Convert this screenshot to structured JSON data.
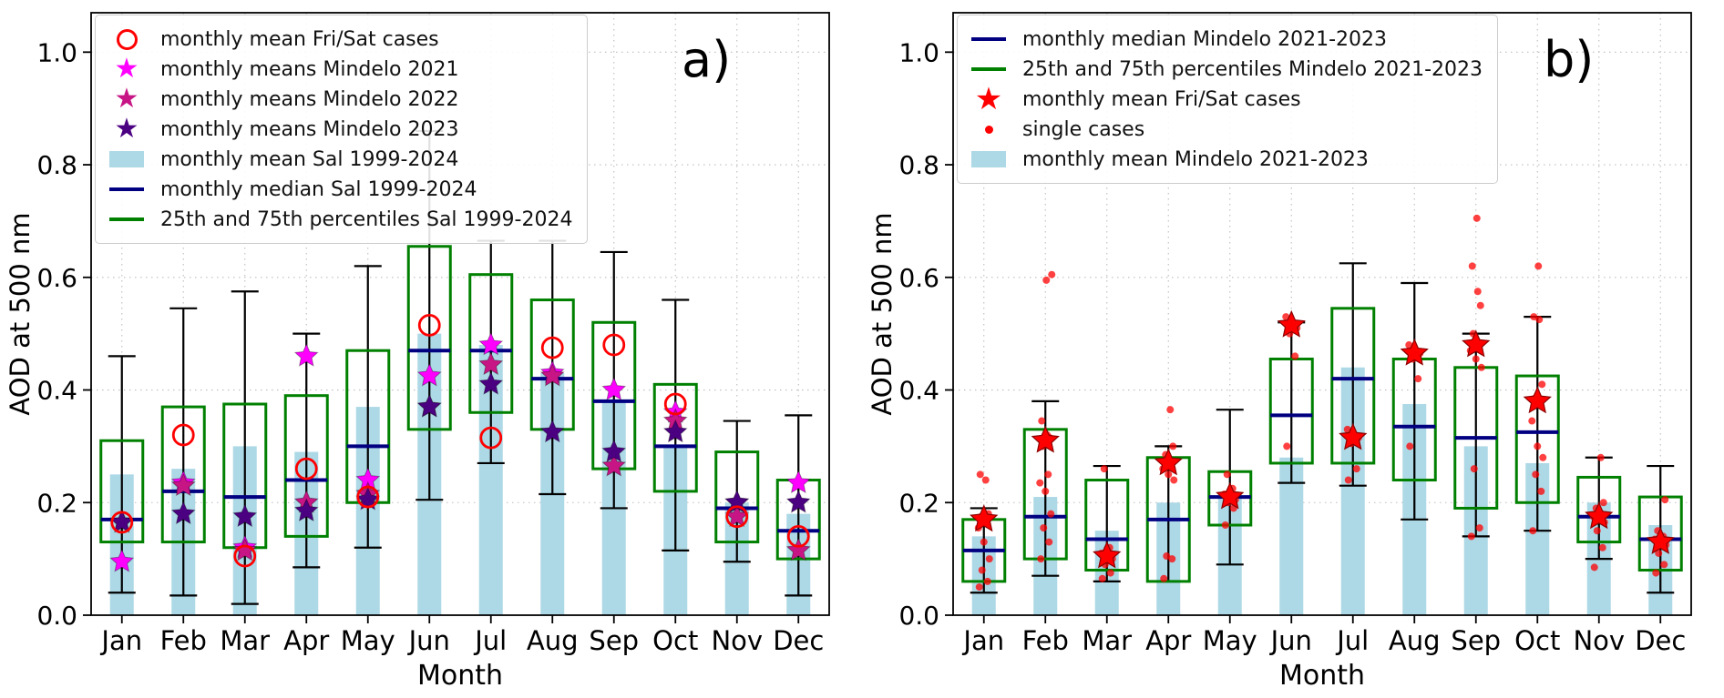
{
  "figure": {
    "panels": [
      {
        "label": "a)",
        "legend": [
          {
            "marker": "open-circle",
            "color": "#FF0000",
            "label": "monthly mean Fri/Sat cases"
          },
          {
            "marker": "star",
            "color": "#FF00FF",
            "label": "monthly means Mindelo 2021"
          },
          {
            "marker": "star",
            "color": "#C71585",
            "label": "monthly means Mindelo 2022"
          },
          {
            "marker": "star",
            "color": "#4B0082",
            "label": "monthly means Mindelo 2023"
          },
          {
            "marker": "bar",
            "color": "#ADD8E6",
            "label": "monthly mean Sal 1999-2024"
          },
          {
            "marker": "line",
            "color": "#000080",
            "label": "monthly median Sal 1999-2024"
          },
          {
            "marker": "line",
            "color": "#008000",
            "label": "25th and 75th percentiles Sal 1999-2024"
          }
        ]
      },
      {
        "label": "b)",
        "legend": [
          {
            "marker": "line",
            "color": "#000080",
            "label": "monthly median Mindelo 2021-2023"
          },
          {
            "marker": "line",
            "color": "#008000",
            "label": "25th and 75th percentiles Mindelo 2021-2023"
          },
          {
            "marker": "filled-star",
            "color": "#FF0000",
            "label": "monthly mean Fri/Sat cases"
          },
          {
            "marker": "dot",
            "color": "#FF0000",
            "label": "single cases"
          },
          {
            "marker": "bar",
            "color": "#ADD8E6",
            "label": "monthly mean Mindelo 2021-2023"
          }
        ]
      }
    ]
  },
  "chart_data": [
    {
      "type": "bar",
      "panel_label": "a)",
      "xlabel": "Month",
      "ylabel": "AOD at 500 nm",
      "ylim": [
        0,
        1.07
      ],
      "yticks": [
        0,
        0.2,
        0.4,
        0.6,
        0.8,
        1.0
      ],
      "grid": true,
      "legend_position": "top-left",
      "categories": [
        "Jan",
        "Feb",
        "Mar",
        "Apr",
        "May",
        "Jun",
        "Jul",
        "Aug",
        "Sep",
        "Oct",
        "Nov",
        "Dec"
      ],
      "bar_means": [
        0.25,
        0.26,
        0.3,
        0.29,
        0.37,
        0.5,
        0.48,
        0.43,
        0.38,
        0.3,
        0.2,
        0.18
      ],
      "medians": [
        0.17,
        0.22,
        0.21,
        0.24,
        0.3,
        0.47,
        0.47,
        0.42,
        0.38,
        0.3,
        0.19,
        0.15
      ],
      "p25": [
        0.13,
        0.13,
        0.12,
        0.14,
        0.2,
        0.33,
        0.36,
        0.33,
        0.26,
        0.22,
        0.13,
        0.1
      ],
      "p75": [
        0.31,
        0.37,
        0.375,
        0.39,
        0.47,
        0.655,
        0.605,
        0.56,
        0.52,
        0.41,
        0.29,
        0.24
      ],
      "whisker_low": [
        0.04,
        0.035,
        0.02,
        0.085,
        0.12,
        0.205,
        0.27,
        0.215,
        0.19,
        0.115,
        0.095,
        0.035
      ],
      "whisker_high": [
        0.46,
        0.545,
        0.575,
        0.5,
        0.62,
        0.86,
        0.665,
        0.665,
        0.645,
        0.56,
        0.345,
        0.355
      ],
      "series": [
        {
          "name": "monthly means Mindelo 2021",
          "marker": "star",
          "color": "#FF00FF",
          "values": [
            0.095,
            0.235,
            0.12,
            0.46,
            0.24,
            0.425,
            0.48,
            0.43,
            0.4,
            0.36,
            0.2,
            0.235
          ]
        },
        {
          "name": "monthly means Mindelo 2022",
          "marker": "star",
          "color": "#C71585",
          "values": [
            0.165,
            0.23,
            0.115,
            0.2,
            0.215,
            0.37,
            0.445,
            0.425,
            0.265,
            0.345,
            0.175,
            0.115
          ]
        },
        {
          "name": "monthly means Mindelo 2023",
          "marker": "star",
          "color": "#4B0082",
          "values": [
            0.165,
            0.18,
            0.175,
            0.185,
            0.205,
            0.37,
            0.41,
            0.325,
            0.29,
            0.325,
            0.2,
            0.2
          ]
        },
        {
          "name": "monthly mean Fri/Sat cases",
          "marker": "open-circle",
          "color": "#FF0000",
          "values": [
            0.165,
            0.32,
            0.105,
            0.26,
            0.21,
            0.515,
            0.315,
            0.475,
            0.48,
            0.375,
            0.175,
            0.14
          ]
        }
      ],
      "colors": {
        "bar": "#ADD8E6",
        "box": "#008000",
        "median": "#000080",
        "whisker": "#000000"
      }
    },
    {
      "type": "bar",
      "panel_label": "b)",
      "xlabel": "Month",
      "ylabel": "AOD at 500 nm",
      "ylim": [
        0,
        1.07
      ],
      "yticks": [
        0,
        0.2,
        0.4,
        0.6,
        0.8,
        1.0
      ],
      "grid": true,
      "legend_position": "top-left",
      "categories": [
        "Jan",
        "Feb",
        "Mar",
        "Apr",
        "May",
        "Jun",
        "Jul",
        "Aug",
        "Sep",
        "Oct",
        "Nov",
        "Dec"
      ],
      "bar_means": [
        0.14,
        0.21,
        0.15,
        0.2,
        0.21,
        0.28,
        0.44,
        0.375,
        0.3,
        0.27,
        0.2,
        0.16
      ],
      "medians": [
        0.115,
        0.175,
        0.135,
        0.17,
        0.21,
        0.355,
        0.42,
        0.335,
        0.315,
        0.325,
        0.175,
        0.135
      ],
      "p25": [
        0.06,
        0.1,
        0.08,
        0.06,
        0.16,
        0.27,
        0.27,
        0.24,
        0.19,
        0.2,
        0.13,
        0.08
      ],
      "p75": [
        0.17,
        0.33,
        0.24,
        0.28,
        0.255,
        0.455,
        0.545,
        0.455,
        0.44,
        0.425,
        0.245,
        0.21
      ],
      "whisker_low": [
        0.04,
        0.07,
        0.06,
        0.06,
        0.09,
        0.235,
        0.23,
        0.17,
        0.14,
        0.15,
        0.1,
        0.04
      ],
      "whisker_high": [
        0.19,
        0.38,
        0.265,
        0.3,
        0.365,
        0.52,
        0.625,
        0.59,
        0.5,
        0.53,
        0.28,
        0.265
      ],
      "series": [
        {
          "name": "monthly mean Fri/Sat cases",
          "marker": "filled-star",
          "color": "#FF0000",
          "values": [
            0.17,
            0.31,
            0.105,
            0.27,
            0.21,
            0.515,
            0.315,
            0.465,
            0.48,
            0.38,
            0.175,
            0.13
          ]
        }
      ],
      "single_cases": [
        [
          0.05,
          0.06,
          0.08,
          0.1,
          0.13,
          0.155,
          0.165,
          0.175,
          0.18,
          0.24,
          0.25
        ],
        [
          0.1,
          0.13,
          0.155,
          0.18,
          0.22,
          0.235,
          0.25,
          0.3,
          0.315,
          0.32,
          0.345,
          0.595,
          0.605
        ],
        [
          0.065,
          0.075,
          0.09,
          0.1,
          0.105,
          0.11,
          0.12,
          0.26
        ],
        [
          0.065,
          0.1,
          0.105,
          0.24,
          0.25,
          0.26,
          0.27,
          0.285,
          0.3,
          0.365
        ],
        [
          0.16,
          0.19,
          0.2,
          0.205,
          0.21,
          0.215,
          0.225,
          0.25
        ],
        [
          0.3,
          0.46,
          0.5,
          0.51,
          0.515,
          0.53
        ],
        [
          0.24,
          0.26,
          0.305,
          0.315,
          0.32,
          0.33
        ],
        [
          0.3,
          0.42,
          0.455,
          0.465,
          0.47,
          0.48
        ],
        [
          0.14,
          0.155,
          0.26,
          0.44,
          0.455,
          0.47,
          0.48,
          0.5,
          0.55,
          0.575,
          0.62,
          0.705
        ],
        [
          0.15,
          0.22,
          0.25,
          0.28,
          0.3,
          0.345,
          0.375,
          0.385,
          0.41,
          0.525,
          0.53,
          0.62
        ],
        [
          0.085,
          0.12,
          0.15,
          0.165,
          0.17,
          0.175,
          0.18,
          0.19,
          0.2,
          0.28
        ],
        [
          0.075,
          0.09,
          0.11,
          0.125,
          0.13,
          0.135,
          0.14,
          0.15,
          0.205
        ]
      ],
      "colors": {
        "bar": "#ADD8E6",
        "box": "#008000",
        "median": "#000080",
        "whisker": "#000000",
        "single": "#FF0000"
      }
    }
  ]
}
